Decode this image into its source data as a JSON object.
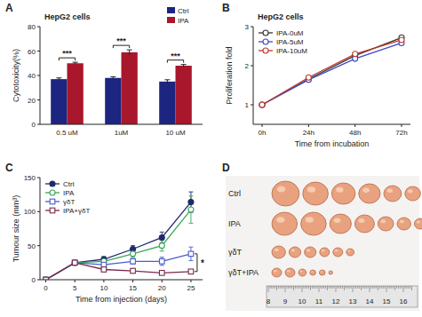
{
  "chart_data": [
    {
      "type": "bar",
      "panel_label": "A",
      "title": "HepG2 cells",
      "y_label": "Cytotoxicity(%)",
      "categories": [
        "0.5 uM",
        "1uM",
        "10 uM"
      ],
      "series": [
        {
          "name": "Ctrl",
          "color": "#1c2580",
          "values": [
            37,
            38,
            35
          ],
          "errors": [
            1,
            1,
            1.5
          ]
        },
        {
          "name": "IPA",
          "color": "#a8172c",
          "values": [
            50,
            59,
            48
          ],
          "errors": [
            0.8,
            2,
            1
          ]
        }
      ],
      "ylim": [
        0,
        80
      ],
      "yticks": [
        0,
        20,
        40,
        60,
        80
      ],
      "legend": "upper right",
      "annotations": [
        "***",
        "***",
        "***"
      ]
    },
    {
      "type": "line",
      "panel_label": "B",
      "title": "HepG2 cells",
      "x_label": "Time from incubation",
      "y_label": "Proliferation fold",
      "categories": [
        "0h",
        "24h",
        "48h",
        "72h"
      ],
      "series": [
        {
          "name": "IPA-0uM",
          "color": "#333333",
          "marker": "open-circle",
          "values": [
            1,
            1.66,
            2.26,
            2.72
          ]
        },
        {
          "name": "IPA-5uM",
          "color": "#3b4cc0",
          "marker": "open-circle",
          "values": [
            1,
            1.64,
            2.18,
            2.58
          ]
        },
        {
          "name": "IPA-10uM",
          "color": "#c0392b",
          "marker": "open-circle",
          "values": [
            1,
            1.7,
            2.3,
            2.66
          ]
        }
      ],
      "ylim": [
        0.5,
        3
      ],
      "yticks": [
        1,
        2,
        3
      ],
      "legend": "upper left"
    },
    {
      "type": "line",
      "panel_label": "C",
      "x_label": "Time from injection (days)",
      "y_label": "Tumour size (mm³)",
      "x": [
        0,
        5,
        10,
        15,
        20,
        25
      ],
      "series": [
        {
          "name": "Ctrl",
          "color": "#1f2a6b",
          "marker": "circle",
          "values": [
            0,
            25,
            30,
            45,
            62,
            114
          ],
          "errors": [
            0,
            3,
            4,
            5,
            8,
            15
          ]
        },
        {
          "name": "IPA",
          "color": "#3aa655",
          "marker": "open-circle",
          "values": [
            0,
            25,
            27,
            38,
            50,
            103
          ],
          "errors": [
            0,
            3,
            4,
            5,
            8,
            20
          ]
        },
        {
          "name": "γδT",
          "color": "#4a5bd0",
          "marker": "open-square",
          "values": [
            0,
            25,
            22,
            27,
            27,
            38
          ],
          "errors": [
            0,
            3,
            3,
            4,
            6,
            10
          ]
        },
        {
          "name": "IPA+γδT",
          "color": "#7a2a4a",
          "marker": "open-square",
          "values": [
            0,
            25,
            15,
            13,
            10,
            12
          ],
          "errors": [
            0,
            3,
            3,
            3,
            2,
            3
          ]
        }
      ],
      "xlim": [
        -1,
        27
      ],
      "xticks": [
        0,
        5,
        10,
        15,
        20,
        25
      ],
      "ylim": [
        0,
        150
      ],
      "yticks": [
        0,
        50,
        100,
        150
      ],
      "legend": "upper left",
      "annotations": [
        "*"
      ]
    }
  ],
  "photo": {
    "panel_label": "D",
    "rows": [
      "Ctrl",
      "IPA",
      "γδT",
      "γδT+IPA"
    ],
    "ruler": [
      8,
      9,
      10,
      11,
      12,
      13,
      14,
      15,
      16
    ]
  }
}
